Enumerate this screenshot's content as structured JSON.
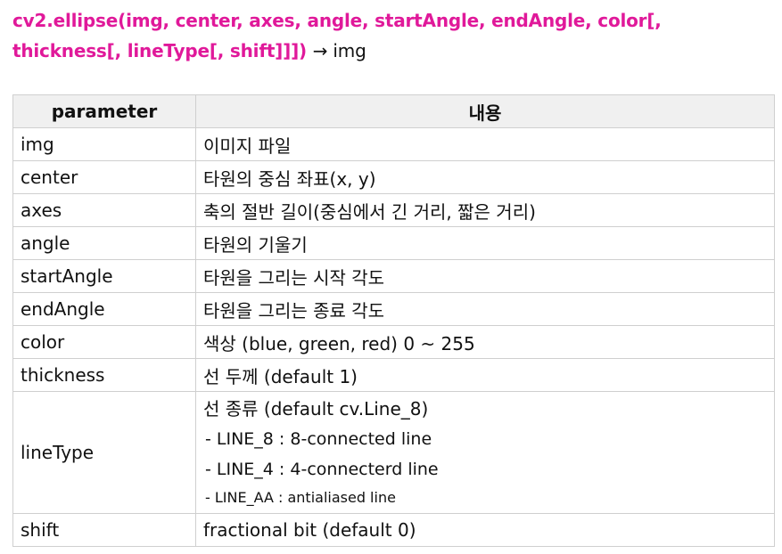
{
  "signature": {
    "call": "cv2.ellipse(img, center, axes, angle, startAngle, endAngle, color[, thickness[, lineType[, shift]]])",
    "returns": "→ img"
  },
  "table": {
    "headers": [
      "parameter",
      "내용"
    ],
    "rows": [
      {
        "name": "img",
        "desc": "이미지 파일"
      },
      {
        "name": "center",
        "desc": "타원의 중심 좌표(x, y)"
      },
      {
        "name": "axes",
        "desc": "축의 절반 길이(중심에서 긴 거리, 짧은 거리)"
      },
      {
        "name": "angle",
        "desc": "타원의 기울기"
      },
      {
        "name": "startAngle",
        "desc": "타원을 그리는 시작 각도"
      },
      {
        "name": "endAngle",
        "desc": "타원을 그리는 종료 각도"
      },
      {
        "name": "color",
        "desc": "색상 (blue, green, red) 0 ~ 255"
      },
      {
        "name": "thickness",
        "desc": "선 두께 (default 1)"
      },
      {
        "name": "lineType",
        "desc": "선 종류 (default cv.Line_8)",
        "sub": [
          "- LINE_8 : 8-connected line",
          "- LINE_4 : 4-connecterd line",
          "- LINE_AA : antialiased line"
        ]
      },
      {
        "name": "shift",
        "desc": "fractional bit (default 0)"
      }
    ]
  }
}
